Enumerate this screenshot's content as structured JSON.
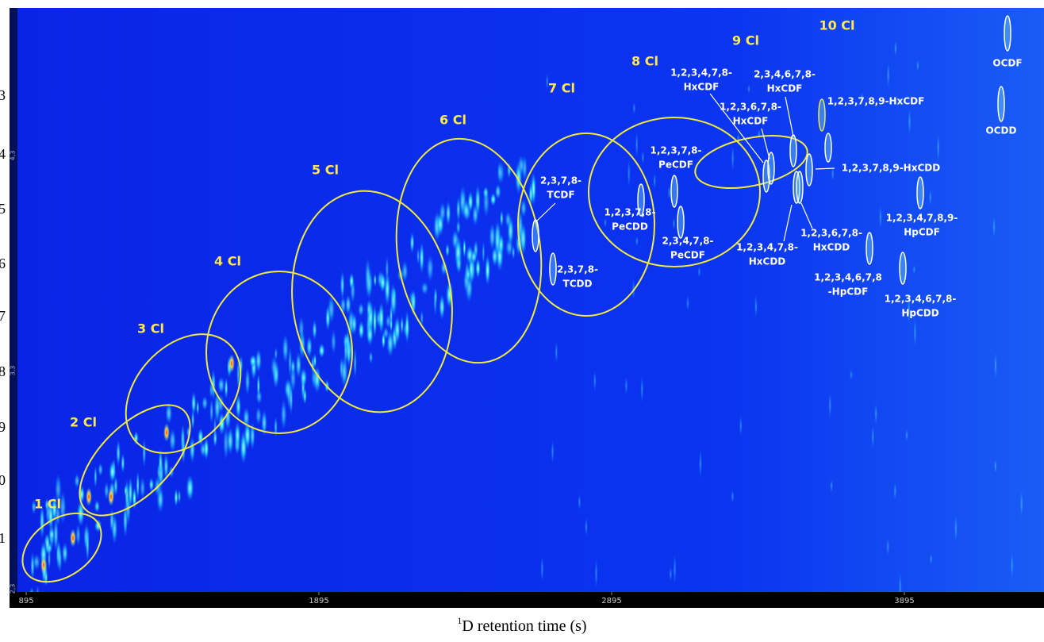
{
  "chart_data": {
    "type": "contour",
    "xlabel_superscript": "1",
    "xlabel": "D retention time (s)",
    "xlim": [
      838,
      4372
    ],
    "xticks": [
      895,
      1895,
      2895,
      3895
    ],
    "y_edge_labels": [
      "3",
      "4",
      "5",
      "6",
      "7",
      "8",
      "9",
      "0",
      "1"
    ],
    "y_small_labels": [
      "4,3",
      "3,3",
      "2,3"
    ],
    "homologs": [
      "1 Cl",
      "2 Cl",
      "3 Cl",
      "4 Cl",
      "5 Cl",
      "6 Cl",
      "7 Cl",
      "8 Cl",
      "9 Cl",
      "10 Cl"
    ],
    "congeners": [
      [
        "2,3,7,8-",
        "TCDF"
      ],
      [
        "2,3,7,8-",
        "TCDD"
      ],
      [
        "1,2,3,7,8-",
        "PeCDF"
      ],
      [
        "1,2,3,7,8-",
        "PeCDD"
      ],
      [
        "2,3,4,7,8-",
        "PeCDF"
      ],
      [
        "1,2,3,4,7,8-",
        "HxCDF"
      ],
      [
        "2,3,4,6,7,8-",
        "HxCDF"
      ],
      [
        "1,2,3,6,7,8-",
        "HxCDF"
      ],
      [
        "1,2,3,7,8,9-HxCDF"
      ],
      [
        "1,2,3,7,8,9-HxCDD"
      ],
      [
        "1,2,3,6,7,8-",
        "HxCDD"
      ],
      [
        "1,2,3,4,7,8-",
        "HxCDD"
      ],
      [
        "1,2,3,4,7,8,9-",
        "HpCDF"
      ],
      [
        "1,2,3,4,6,7,8",
        "-HpCDF"
      ],
      [
        "1,2,3,4,6,7,8-",
        "HpCDD"
      ],
      [
        "OCDF"
      ],
      [
        "OCDD"
      ]
    ]
  }
}
